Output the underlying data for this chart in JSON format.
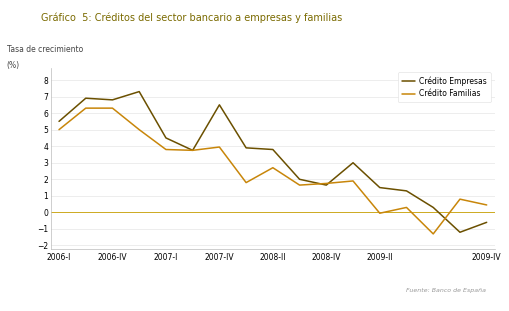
{
  "title": "Gráfico  5: Créditos del sector bancario a empresas y familias",
  "ylabel_line1": "Tasa de crecimiento",
  "ylabel_line2": "(%)",
  "source": "Fuente: Banco de España",
  "x_labels": [
    "2006-I",
    "2006-IV",
    "2007-I",
    "2007-IV",
    "2008-II",
    "2008-IV",
    "2009-II",
    "2009-IV"
  ],
  "empresas_y": [
    5.5,
    6.9,
    6.8,
    7.3,
    4.5,
    3.75,
    6.5,
    3.9,
    3.8,
    2.0,
    1.65,
    3.0,
    1.5,
    1.3,
    0.3,
    -1.2,
    -0.6
  ],
  "familias_y": [
    5.0,
    6.3,
    6.3,
    5.0,
    3.8,
    3.75,
    3.95,
    1.8,
    2.7,
    1.65,
    1.75,
    1.9,
    -0.05,
    0.3,
    -1.3,
    0.8,
    0.45
  ],
  "color_empresas": "#6b5000",
  "color_familias": "#c8860a",
  "ylim": [
    -2.2,
    8.7
  ],
  "yticks": [
    -2,
    -1,
    0,
    1,
    2,
    3,
    4,
    5,
    6,
    7,
    8
  ],
  "background_color": "#ffffff",
  "title_color": "#7a6a00",
  "legend_label_empresas": "Crédito Empresas",
  "legend_label_familias": "Crédito Familias"
}
